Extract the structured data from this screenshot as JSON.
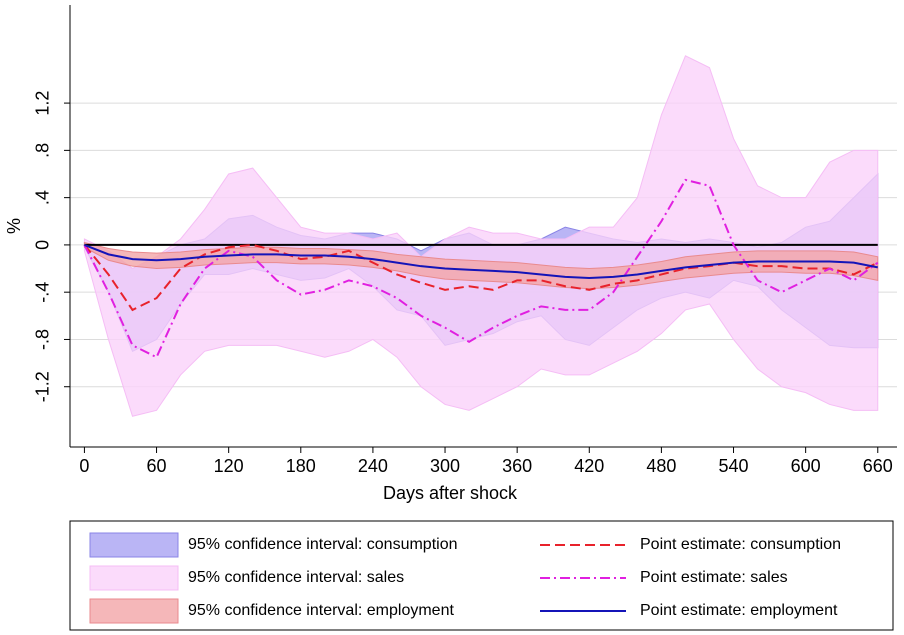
{
  "chart_data": {
    "type": "band-line",
    "x_label": "Days after shock",
    "y_label": "%",
    "xlim": [
      -12,
      676
    ],
    "ylim": [
      -1.71,
      2.03
    ],
    "xticks": [
      0,
      60,
      120,
      180,
      240,
      300,
      360,
      420,
      480,
      540,
      600,
      660
    ],
    "yticks": [
      {
        "value": 1.2,
        "label": "1.2"
      },
      {
        "value": 0.8,
        "label": ".8"
      },
      {
        "value": 0.4,
        "label": ".4"
      },
      0,
      {
        "value": -0.4,
        "label": "-.4"
      },
      {
        "value": -0.8,
        "label": "-.8"
      },
      {
        "value": -1.2,
        "label": "-1.2"
      }
    ],
    "grid": true,
    "hline": 0,
    "x": [
      0,
      20,
      40,
      60,
      80,
      100,
      120,
      140,
      160,
      180,
      200,
      220,
      240,
      260,
      280,
      300,
      320,
      340,
      360,
      380,
      400,
      420,
      440,
      460,
      480,
      500,
      520,
      540,
      560,
      580,
      600,
      620,
      640,
      660
    ],
    "series": [
      {
        "name": "95% confidence interval: consumption",
        "kind": "band",
        "color": "#a9a3f2",
        "stroke": "#8a84e6",
        "upper": [
          0.02,
          -0.05,
          -0.2,
          -0.1,
          0,
          0.05,
          0.22,
          0.25,
          0.15,
          0.08,
          0.05,
          0.1,
          0.1,
          0.05,
          -0.05,
          0.05,
          0.1,
          0,
          0,
          0.05,
          0.15,
          0.1,
          0.05,
          0.02,
          0.05,
          0.02,
          0.05,
          0.02,
          -0.02,
          0.02,
          0.15,
          0.2,
          0.4,
          0.6
        ],
        "lower": [
          -0.02,
          -0.4,
          -0.9,
          -0.8,
          -0.5,
          -0.25,
          -0.25,
          -0.2,
          -0.25,
          -0.3,
          -0.28,
          -0.2,
          -0.35,
          -0.55,
          -0.6,
          -0.85,
          -0.8,
          -0.75,
          -0.65,
          -0.6,
          -0.8,
          -0.85,
          -0.7,
          -0.55,
          -0.45,
          -0.4,
          -0.45,
          -0.3,
          -0.35,
          -0.55,
          -0.7,
          -0.85,
          -0.87,
          -0.87
        ]
      },
      {
        "name": "95% confidence interval: sales",
        "kind": "band",
        "color": "#fad2fa",
        "stroke": "#f5bdf5",
        "upper": [
          0.05,
          -0.05,
          -0.2,
          -0.1,
          0.05,
          0.3,
          0.6,
          0.65,
          0.4,
          0.15,
          0.1,
          0.1,
          0.05,
          0.1,
          -0.1,
          0.05,
          0.15,
          0.1,
          0.1,
          0.05,
          0.05,
          0.15,
          0.15,
          0.4,
          1.1,
          1.6,
          1.5,
          0.9,
          0.5,
          0.4,
          0.4,
          0.7,
          0.8,
          0.8
        ],
        "lower": [
          -0.05,
          -0.8,
          -1.45,
          -1.4,
          -1.1,
          -0.9,
          -0.85,
          -0.85,
          -0.85,
          -0.9,
          -0.95,
          -0.9,
          -0.8,
          -0.95,
          -1.2,
          -1.35,
          -1.4,
          -1.3,
          -1.2,
          -1.05,
          -1.1,
          -1.1,
          -1,
          -0.9,
          -0.75,
          -0.55,
          -0.5,
          -0.8,
          -1.05,
          -1.2,
          -1.25,
          -1.35,
          -1.4,
          -1.4
        ]
      },
      {
        "name": "95% confidence interval: employment",
        "kind": "band",
        "color": "#f2a5a8",
        "stroke": "#e98a8e",
        "upper": [
          0.02,
          -0.03,
          -0.06,
          -0.07,
          -0.06,
          -0.04,
          -0.03,
          -0.02,
          -0.02,
          -0.03,
          -0.03,
          -0.04,
          -0.05,
          -0.08,
          -0.1,
          -0.12,
          -0.13,
          -0.14,
          -0.15,
          -0.17,
          -0.19,
          -0.2,
          -0.19,
          -0.17,
          -0.14,
          -0.1,
          -0.08,
          -0.06,
          -0.05,
          -0.05,
          -0.05,
          -0.05,
          -0.06,
          -0.1
        ],
        "lower": [
          -0.02,
          -0.13,
          -0.18,
          -0.2,
          -0.19,
          -0.17,
          -0.16,
          -0.15,
          -0.15,
          -0.16,
          -0.16,
          -0.17,
          -0.19,
          -0.22,
          -0.26,
          -0.29,
          -0.3,
          -0.31,
          -0.32,
          -0.34,
          -0.36,
          -0.37,
          -0.36,
          -0.34,
          -0.31,
          -0.28,
          -0.26,
          -0.24,
          -0.23,
          -0.23,
          -0.24,
          -0.24,
          -0.26,
          -0.3
        ]
      },
      {
        "name": "Point estimate: consumption",
        "kind": "line",
        "color": "#e8222b",
        "dash": "dashed",
        "values": [
          0,
          -0.25,
          -0.55,
          -0.45,
          -0.2,
          -0.08,
          -0.02,
          0,
          -0.05,
          -0.12,
          -0.1,
          -0.05,
          -0.15,
          -0.25,
          -0.32,
          -0.38,
          -0.35,
          -0.38,
          -0.3,
          -0.3,
          -0.35,
          -0.38,
          -0.33,
          -0.3,
          -0.25,
          -0.2,
          -0.18,
          -0.15,
          -0.18,
          -0.18,
          -0.2,
          -0.2,
          -0.25,
          -0.15
        ]
      },
      {
        "name": "Point estimate: sales",
        "kind": "line",
        "color": "#e020e0",
        "dash": "dashdot",
        "values": [
          0,
          -0.4,
          -0.85,
          -0.95,
          -0.5,
          -0.2,
          -0.05,
          -0.1,
          -0.3,
          -0.42,
          -0.38,
          -0.3,
          -0.35,
          -0.45,
          -0.6,
          -0.7,
          -0.82,
          -0.7,
          -0.6,
          -0.52,
          -0.55,
          -0.55,
          -0.4,
          -0.1,
          0.2,
          0.55,
          0.5,
          0,
          -0.3,
          -0.4,
          -0.3,
          -0.2,
          -0.3,
          -0.15
        ]
      },
      {
        "name": "Point estimate: employment",
        "kind": "line",
        "color": "#1414b8",
        "dash": "solid",
        "values": [
          0,
          -0.08,
          -0.12,
          -0.13,
          -0.12,
          -0.1,
          -0.09,
          -0.08,
          -0.08,
          -0.09,
          -0.09,
          -0.1,
          -0.12,
          -0.15,
          -0.18,
          -0.2,
          -0.21,
          -0.22,
          -0.23,
          -0.25,
          -0.27,
          -0.28,
          -0.27,
          -0.25,
          -0.22,
          -0.19,
          -0.17,
          -0.15,
          -0.14,
          -0.14,
          -0.14,
          -0.14,
          -0.15,
          -0.19
        ]
      }
    ]
  }
}
